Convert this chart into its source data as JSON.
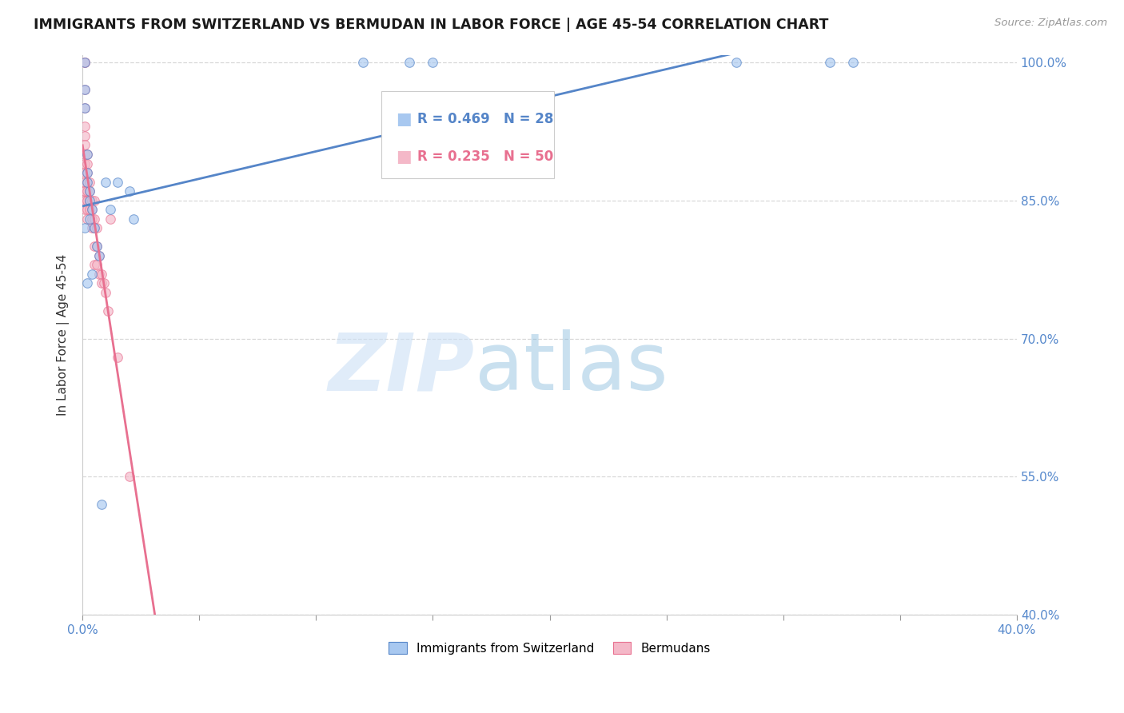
{
  "title": "IMMIGRANTS FROM SWITZERLAND VS BERMUDAN IN LABOR FORCE | AGE 45-54 CORRELATION CHART",
  "source": "Source: ZipAtlas.com",
  "ylabel": "In Labor Force | Age 45-54",
  "xlim": [
    0.0,
    0.4
  ],
  "ylim": [
    0.4,
    1.008
  ],
  "x_ticks": [
    0.0,
    0.05,
    0.1,
    0.15,
    0.2,
    0.25,
    0.3,
    0.35,
    0.4
  ],
  "x_tick_labels": [
    "0.0%",
    "",
    "",
    "",
    "",
    "",
    "",
    "",
    "40.0%"
  ],
  "y_ticks": [
    0.4,
    0.55,
    0.7,
    0.85,
    1.0
  ],
  "y_tick_labels": [
    "40.0%",
    "55.0%",
    "70.0%",
    "85.0%",
    "100.0%"
  ],
  "blue_color": "#a8c8f0",
  "pink_color": "#f4b8c8",
  "trend_blue": "#5585c8",
  "trend_pink": "#e87090",
  "legend_blue_R": "R = 0.469",
  "legend_blue_N": "N = 28",
  "legend_pink_R": "R = 0.235",
  "legend_pink_N": "N = 50",
  "swiss_x": [
    0.001,
    0.001,
    0.001,
    0.002,
    0.002,
    0.002,
    0.003,
    0.003,
    0.004,
    0.005,
    0.006,
    0.007,
    0.008,
    0.01,
    0.012,
    0.015,
    0.02,
    0.022,
    0.12,
    0.14,
    0.15,
    0.28,
    0.32,
    0.33,
    0.001,
    0.002,
    0.003,
    0.004
  ],
  "swiss_y": [
    1.0,
    0.97,
    0.95,
    0.9,
    0.88,
    0.87,
    0.86,
    0.85,
    0.84,
    0.82,
    0.8,
    0.79,
    0.52,
    0.87,
    0.84,
    0.87,
    0.86,
    0.83,
    1.0,
    1.0,
    1.0,
    1.0,
    1.0,
    1.0,
    0.82,
    0.76,
    0.83,
    0.77
  ],
  "bermuda_x": [
    0.001,
    0.001,
    0.001,
    0.001,
    0.001,
    0.001,
    0.001,
    0.001,
    0.001,
    0.001,
    0.001,
    0.001,
    0.001,
    0.001,
    0.001,
    0.001,
    0.002,
    0.002,
    0.002,
    0.002,
    0.002,
    0.002,
    0.002,
    0.002,
    0.003,
    0.003,
    0.003,
    0.003,
    0.004,
    0.004,
    0.004,
    0.004,
    0.005,
    0.005,
    0.005,
    0.005,
    0.005,
    0.006,
    0.006,
    0.006,
    0.007,
    0.007,
    0.008,
    0.008,
    0.009,
    0.01,
    0.011,
    0.012,
    0.015,
    0.02
  ],
  "bermuda_y": [
    1.0,
    1.0,
    0.97,
    0.95,
    0.93,
    0.92,
    0.91,
    0.9,
    0.89,
    0.88,
    0.87,
    0.86,
    0.86,
    0.85,
    0.85,
    0.84,
    0.9,
    0.89,
    0.88,
    0.87,
    0.86,
    0.85,
    0.84,
    0.83,
    0.87,
    0.86,
    0.85,
    0.84,
    0.85,
    0.84,
    0.83,
    0.82,
    0.85,
    0.83,
    0.82,
    0.8,
    0.78,
    0.82,
    0.8,
    0.78,
    0.79,
    0.77,
    0.77,
    0.76,
    0.76,
    0.75,
    0.73,
    0.83,
    0.68,
    0.55
  ],
  "background_color": "#ffffff",
  "grid_color": "#d8d8d8",
  "marker_size": 70,
  "marker_alpha": 0.65
}
